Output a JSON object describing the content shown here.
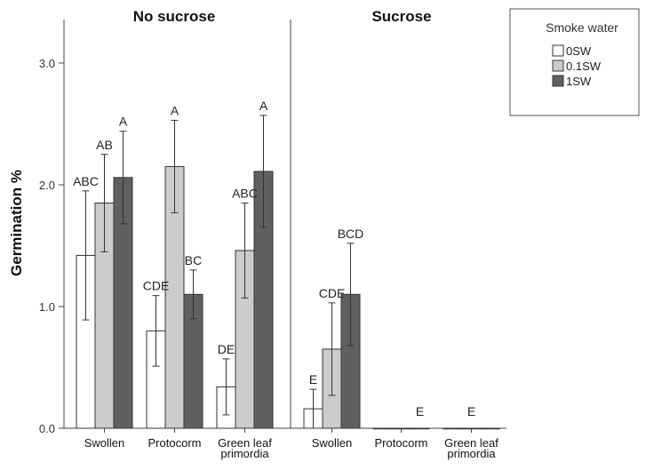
{
  "chart_data": {
    "type": "bar",
    "ylabel": "Germination %",
    "ylim": [
      0,
      3.4
    ],
    "y_ticks": [
      "0.0",
      "1.0",
      "2.0",
      "3.0"
    ],
    "grid": false,
    "legend": {
      "title": "Smoke water",
      "placement": "top-right",
      "entries": [
        "0SW",
        "0.1SW",
        "1SW"
      ]
    },
    "series_colors": [
      "#ffffff",
      "#cccccc",
      "#606060"
    ],
    "panels": [
      {
        "title": "No sucrose",
        "categories": [
          "Swollen",
          "Protocorm",
          "Green leaf\nprimordia"
        ],
        "series": [
          {
            "name": "0SW",
            "values": [
              1.42,
              0.8,
              0.34
            ],
            "err": [
              0.53,
              0.29,
              0.23
            ],
            "labels": [
              "ABC",
              "CDE",
              "DE"
            ]
          },
          {
            "name": "0.1SW",
            "values": [
              1.85,
              2.15,
              1.46
            ],
            "err": [
              0.4,
              0.38,
              0.39
            ],
            "labels": [
              "AB",
              "A",
              "ABC"
            ]
          },
          {
            "name": "1SW",
            "values": [
              2.06,
              1.1,
              2.11
            ],
            "err": [
              0.38,
              0.2,
              0.46
            ],
            "labels": [
              "A",
              "BC",
              "A"
            ]
          }
        ]
      },
      {
        "title": "Sucrose",
        "categories": [
          "Swollen",
          "Protocorm",
          "Green leaf\nprimordia"
        ],
        "series": [
          {
            "name": "0SW",
            "values": [
              0.16,
              0.0,
              0.0
            ],
            "err": [
              0.16,
              0.0,
              0.0
            ],
            "labels": [
              "E",
              "",
              ""
            ]
          },
          {
            "name": "0.1SW",
            "values": [
              0.65,
              0.0,
              0.0
            ],
            "err": [
              0.38,
              0.0,
              0.0
            ],
            "labels": [
              "CDE",
              "",
              "E"
            ]
          },
          {
            "name": "1SW",
            "values": [
              1.1,
              0.0,
              0.0
            ],
            "err": [
              0.42,
              0.0,
              0.0
            ],
            "labels": [
              "BCD",
              "E",
              ""
            ]
          }
        ]
      }
    ]
  }
}
